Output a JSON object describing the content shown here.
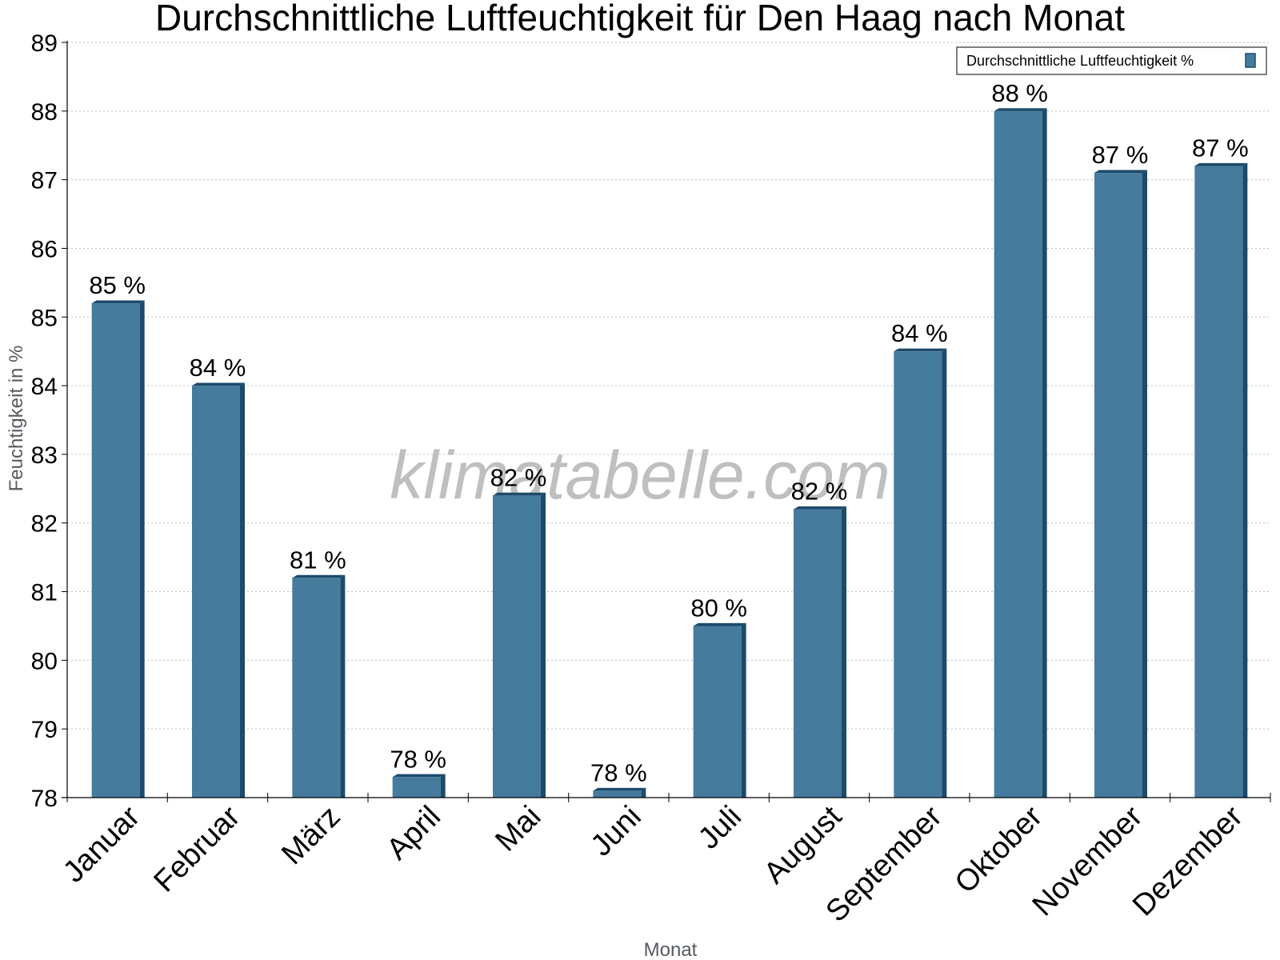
{
  "chart_data": {
    "type": "bar",
    "title": "Durchschnittliche Luftfeuchtigkeit für Den Haag nach Monat",
    "xlabel": "Monat",
    "ylabel": "Feuchtigkeit in %",
    "categories": [
      "Januar",
      "Februar",
      "März",
      "April",
      "Mai",
      "Juni",
      "Juli",
      "August",
      "September",
      "Oktober",
      "November",
      "Dezember"
    ],
    "series": [
      {
        "name": "Durchschnittliche Luftfeuchtigkeit %",
        "values": [
          85.2,
          84.0,
          81.2,
          78.3,
          82.4,
          78.1,
          80.5,
          82.2,
          84.5,
          88.0,
          87.1,
          87.2
        ],
        "data_labels": [
          "85 %",
          "84 %",
          "81 %",
          "78 %",
          "82 %",
          "78 %",
          "80 %",
          "82 %",
          "84 %",
          "88 %",
          "87 %",
          "87 %"
        ],
        "color": "#457b9d",
        "edge_color": "#1d4a6a"
      }
    ],
    "ylim": [
      78,
      89
    ],
    "yticks": [
      78,
      79,
      80,
      81,
      82,
      83,
      84,
      85,
      86,
      87,
      88,
      89
    ],
    "grid": true,
    "legend_position": "top-right",
    "watermark": "klimatabelle.com"
  }
}
